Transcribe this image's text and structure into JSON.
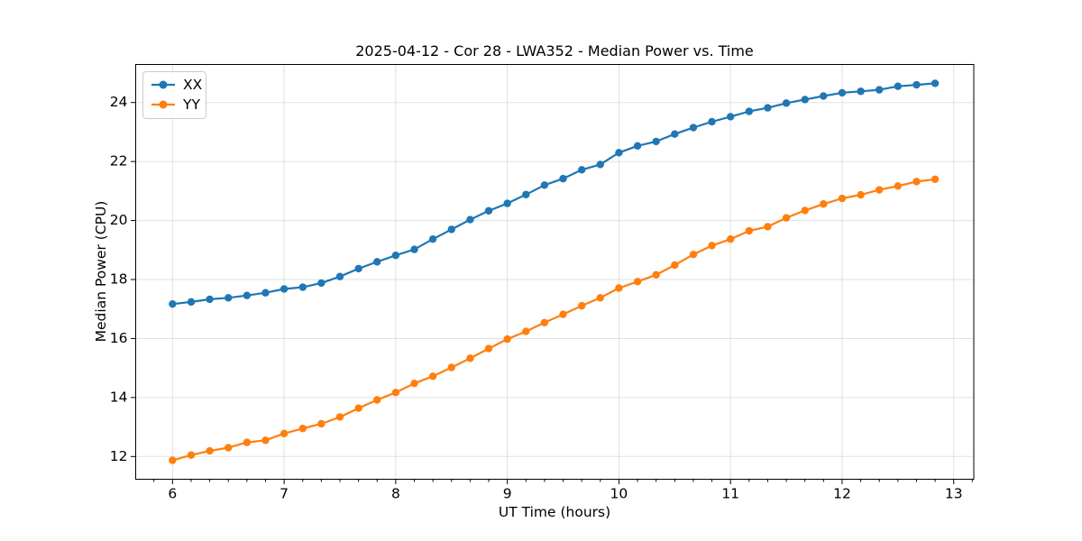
{
  "figure": {
    "background": "#ffffff",
    "grid_color": "#e0e0e0",
    "spine_color": "#000000"
  },
  "chart_data": {
    "type": "line",
    "title": "2025-04-12 - Cor 28 - LWA352 - Median Power vs. Time",
    "xlabel": "UT Time (hours)",
    "ylabel": "Median Power (CPU)",
    "xlim": [
      5.67,
      13.18
    ],
    "ylim": [
      11.23,
      25.29
    ],
    "xticks": [
      6,
      7,
      8,
      9,
      10,
      11,
      12,
      13
    ],
    "yticks": [
      12,
      14,
      16,
      18,
      20,
      22,
      24
    ],
    "x_minor_tick_step_hours": 0.1667,
    "grid": true,
    "legend_position": "upper left",
    "marker": "circle",
    "x": [
      6.0,
      6.167,
      6.333,
      6.5,
      6.667,
      6.833,
      7.0,
      7.167,
      7.333,
      7.5,
      7.667,
      7.833,
      8.0,
      8.167,
      8.333,
      8.5,
      8.667,
      8.833,
      9.0,
      9.167,
      9.333,
      9.5,
      9.667,
      9.833,
      10.0,
      10.167,
      10.333,
      10.5,
      10.667,
      10.833,
      11.0,
      11.167,
      11.333,
      11.5,
      11.667,
      11.833,
      12.0,
      12.167,
      12.333,
      12.5,
      12.667,
      12.833
    ],
    "series": [
      {
        "name": "XX",
        "color": "#1f77b4",
        "values": [
          17.17,
          17.24,
          17.33,
          17.38,
          17.46,
          17.55,
          17.68,
          17.74,
          17.88,
          18.1,
          18.37,
          18.6,
          18.82,
          19.02,
          19.37,
          19.7,
          20.03,
          20.33,
          20.58,
          20.88,
          21.2,
          21.42,
          21.72,
          21.9,
          22.3,
          22.53,
          22.68,
          22.93,
          23.15,
          23.35,
          23.52,
          23.7,
          23.82,
          23.98,
          24.1,
          24.22,
          24.33,
          24.38,
          24.43,
          24.55,
          24.6,
          24.65
        ]
      },
      {
        "name": "YY",
        "color": "#ff7f0e",
        "values": [
          11.87,
          12.05,
          12.19,
          12.3,
          12.48,
          12.55,
          12.78,
          12.95,
          13.11,
          13.34,
          13.64,
          13.92,
          14.17,
          14.48,
          14.72,
          15.02,
          15.33,
          15.66,
          15.98,
          16.24,
          16.54,
          16.82,
          17.11,
          17.38,
          17.71,
          17.93,
          18.16,
          18.49,
          18.85,
          19.15,
          19.37,
          19.65,
          19.79,
          20.09,
          20.34,
          20.56,
          20.75,
          20.87,
          21.04,
          21.17,
          21.32,
          21.4
        ]
      }
    ]
  }
}
